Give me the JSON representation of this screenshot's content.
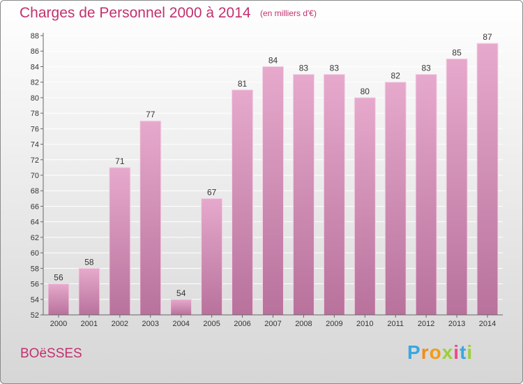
{
  "header": {
    "title": "Charges de Personnel 2000 à 2014",
    "subtitle": "(en milliers d'€)"
  },
  "footer": {
    "town": "BOëSSES",
    "logo_letters": [
      "P",
      "r",
      "o",
      "x",
      "i",
      "t",
      "i"
    ],
    "logo_colors": [
      "#3aa7e0",
      "#f18b1e",
      "#f39c12",
      "#9bcf3a",
      "#e84c8a",
      "#3aa7e0",
      "#9bcf3a"
    ]
  },
  "colors": {
    "bar_top": "#e6a9cc",
    "bar_bottom": "#b8729c",
    "bar_edge": "#f4d4e6",
    "grid": "#ffffff",
    "axis": "#666666",
    "accent": "#c2306e"
  },
  "chart_data": {
    "type": "bar",
    "title": "Charges de Personnel 2000 à 2014",
    "subtitle": "(en milliers d'€)",
    "categories": [
      "2000",
      "2001",
      "2002",
      "2003",
      "2004",
      "2005",
      "2006",
      "2007",
      "2008",
      "2009",
      "2010",
      "2011",
      "2012",
      "2013",
      "2014"
    ],
    "values": [
      56,
      58,
      71,
      77,
      54,
      67,
      81,
      84,
      83,
      83,
      80,
      82,
      83,
      85,
      87
    ],
    "ylim": [
      52,
      88
    ],
    "yticks": [
      52,
      54,
      56,
      58,
      60,
      62,
      64,
      66,
      68,
      70,
      72,
      74,
      76,
      78,
      80,
      82,
      84,
      86,
      88
    ],
    "grid": true,
    "legend": "none"
  }
}
